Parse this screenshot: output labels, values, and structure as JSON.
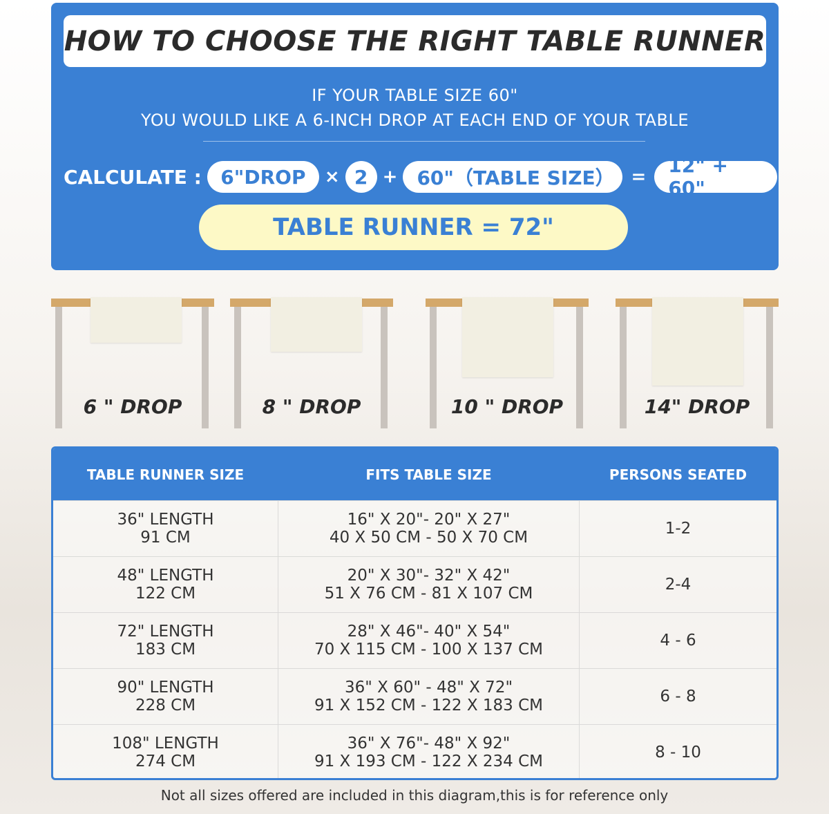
{
  "title": "HOW TO CHOOSE THE RIGHT TABLE RUNNER",
  "subtitle": [
    "IF YOUR TABLE SIZE 60\"",
    "YOU WOULD LIKE A 6-INCH DROP AT EACH END OF YOUR TABLE"
  ],
  "calculation": {
    "label": "CALCULATE :",
    "drop": "6\"DROP",
    "times": "×",
    "multiplier": "2",
    "plus": "+",
    "table_size": "60\"（TABLE SIZE）",
    "equals": "=",
    "sum": "12\" + 60\"",
    "result": "TABLE RUNNER = 72\""
  },
  "drops": [
    {
      "label": "6 \" DROP",
      "drop_in": 6
    },
    {
      "label": "8 \" DROP",
      "drop_in": 8
    },
    {
      "label": "10 \" DROP",
      "drop_in": 10
    },
    {
      "label": "14\" DROP",
      "drop_in": 14
    }
  ],
  "size_table": {
    "headers": [
      "TABLE RUNNER SIZE",
      "FITS TABLE SIZE",
      "PERSONS SEATED"
    ],
    "rows": [
      {
        "runner": [
          "36\" LENGTH",
          "91 CM"
        ],
        "fits": [
          "16\" X 20\"- 20\" X 27\"",
          "40 X 50 CM - 50 X 70 CM"
        ],
        "persons": "1-2"
      },
      {
        "runner": [
          "48\" LENGTH",
          "122 CM"
        ],
        "fits": [
          "20\" X 30\"- 32\" X 42\"",
          "51 X 76 CM - 81 X 107 CM"
        ],
        "persons": "2-4"
      },
      {
        "runner": [
          "72\" LENGTH",
          "183 CM"
        ],
        "fits": [
          "28\" X 46\"- 40\" X 54\"",
          "70 X 115 CM - 100 X 137 CM"
        ],
        "persons": "4 - 6"
      },
      {
        "runner": [
          "90\" LENGTH",
          "228 CM"
        ],
        "fits": [
          "36\" X 60\" - 48\" X 72\"",
          "91 X 152 CM - 122 X 183 CM"
        ],
        "persons": "6 - 8"
      },
      {
        "runner": [
          "108\" LENGTH",
          "274 CM"
        ],
        "fits": [
          "36\" X 76\"- 48\" X 92\"",
          "91 X 193 CM - 122 X 234 CM"
        ],
        "persons": "8 - 10"
      }
    ]
  },
  "note": "Not all sizes offered are included in this diagram,this is for reference only",
  "colors": {
    "accent": "#3a80d4",
    "highlight": "#fdf9c6",
    "tabletop": "#d4a86a",
    "runner": "#f2efe2"
  }
}
